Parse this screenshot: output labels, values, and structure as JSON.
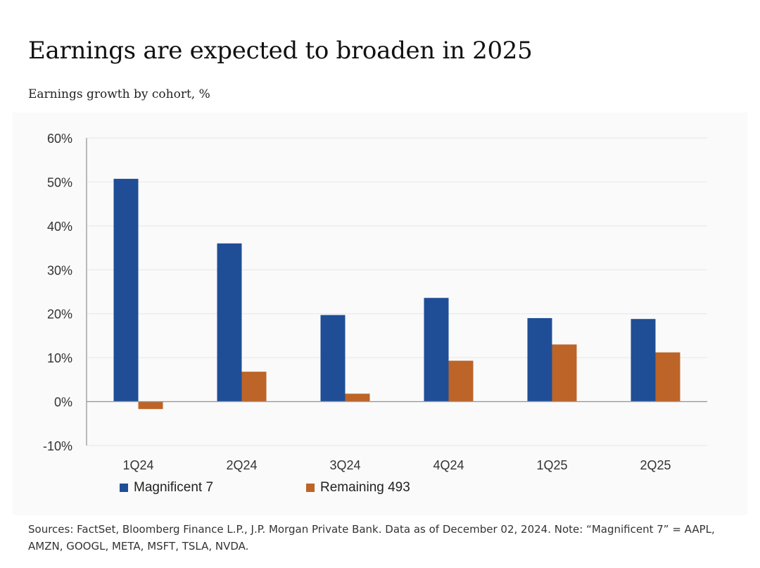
{
  "title": "Earnings are expected to broaden in 2025",
  "subtitle": "Earnings growth by cohort, %",
  "sources": "Sources: FactSet, Bloomberg Finance L.P., J.P. Morgan Private Bank. Data as of December 02, 2024. Note: “Magnificent 7” = AAPL, AMZN, GOOGL, META, MSFT, TSLA, NVDA.",
  "colors": {
    "magnificent7": "#1f4e96",
    "remaining493": "#bd6428",
    "gridline": "#e6e6e6",
    "axis": "#999999",
    "panel_background": "#fafafa"
  },
  "chart_data": {
    "type": "bar",
    "title": "Earnings are expected to broaden in 2025",
    "subtitle": "Earnings growth by cohort, %",
    "categories": [
      "1Q24",
      "2Q24",
      "3Q24",
      "4Q24",
      "1Q25",
      "2Q25"
    ],
    "series": [
      {
        "name": "Magnificent 7",
        "values": [
          50.7,
          36.0,
          19.7,
          23.6,
          19.0,
          18.8
        ]
      },
      {
        "name": "Remaining 493",
        "values": [
          -1.7,
          6.8,
          1.8,
          9.3,
          13.0,
          11.2
        ]
      }
    ],
    "ylim": [
      -10,
      60
    ],
    "yticks": [
      60,
      50,
      40,
      30,
      20,
      10,
      0,
      -10
    ],
    "ytick_labels": [
      "60%",
      "50%",
      "40%",
      "30%",
      "20%",
      "10%",
      "0%",
      "-10%"
    ],
    "grid": true,
    "legend_position": "bottom-left"
  }
}
